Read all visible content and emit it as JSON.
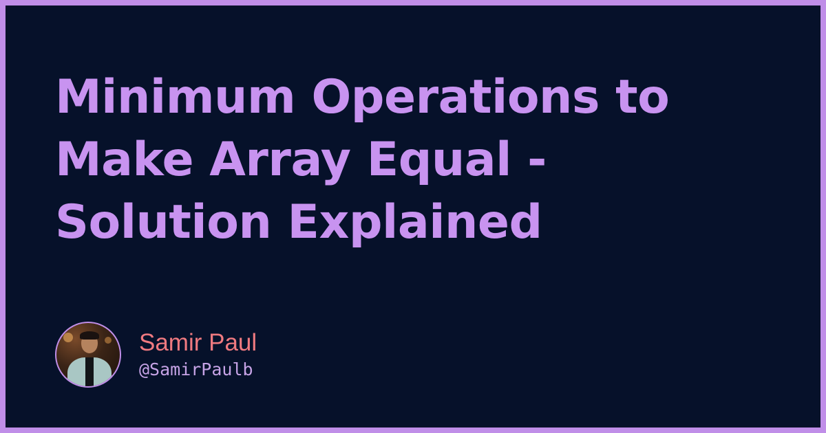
{
  "title_lines": [
    "Minimum Operations to",
    "Make Array Equal -",
    "Solution Explained"
  ],
  "author": {
    "name": "Samir Paul",
    "handle": "@SamirPaulb",
    "avatar_icon": "user-photo-avatar"
  },
  "colors": {
    "border": "#c08ee8",
    "background": "#06112a",
    "title": "#c893f0",
    "author_name": "#f07a80",
    "author_handle": "#c6a3e6"
  }
}
